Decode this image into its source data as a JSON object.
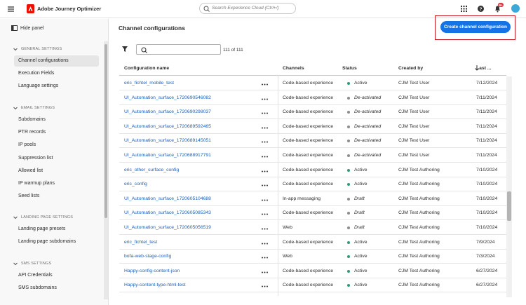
{
  "header": {
    "app_name": "Adobe Journey Optimizer",
    "search_placeholder": "Search Experience Cloud (Ctrl+/)",
    "notification_badge": "9+"
  },
  "sidebar": {
    "hide_panel": "Hide panel",
    "selected": "Channel configurations",
    "sections": [
      {
        "title": "GENERAL SETTINGS",
        "items": [
          "Channel configurations",
          "Execution Fields",
          "Language settings"
        ]
      },
      {
        "title": "EMAIL SETTINGS",
        "items": [
          "Subdomains",
          "PTR records",
          "IP pools",
          "Suppression list",
          "Allowed list",
          "IP warmup plans",
          "Seed lists"
        ]
      },
      {
        "title": "LANDING PAGE SETTINGS",
        "items": [
          "Landing page presets",
          "Landing page subdomains"
        ]
      },
      {
        "title": "SMS SETTINGS",
        "items": [
          "API Credentials",
          "SMS subdomains"
        ]
      }
    ]
  },
  "main": {
    "title": "Channel configurations",
    "create_button": "Create channel configuration",
    "count": "111 of 111",
    "table": {
      "columns": [
        "Configuration name",
        "Channels",
        "Status",
        "Created by",
        "Last ..."
      ],
      "rows": [
        {
          "name": "eric_fichtel_mobile_test",
          "channel": "Code-based experience",
          "status": "Active",
          "status_color": "#2d9d78",
          "created_by": "CJM Test User",
          "last": "7/12/2024"
        },
        {
          "name": "UI_Automation_surface_1720690546082",
          "channel": "Code-based experience",
          "status": "De-activated",
          "status_color": "#8e8e8e",
          "created_by": "CJM Test User",
          "last": "7/11/2024"
        },
        {
          "name": "UI_Automation_surface_1720690298037",
          "channel": "Code-based experience",
          "status": "De-activated",
          "status_color": "#8e8e8e",
          "created_by": "CJM Test User",
          "last": "7/11/2024"
        },
        {
          "name": "UI_Automation_surface_1720689592465",
          "channel": "Code-based experience",
          "status": "De-activated",
          "status_color": "#8e8e8e",
          "created_by": "CJM Test User",
          "last": "7/11/2024"
        },
        {
          "name": "UI_Automation_surface_1720689145051",
          "channel": "Code-based experience",
          "status": "De-activated",
          "status_color": "#8e8e8e",
          "created_by": "CJM Test User",
          "last": "7/11/2024"
        },
        {
          "name": "UI_Automation_surface_1720688917791",
          "channel": "Code-based experience",
          "status": "De-activated",
          "status_color": "#8e8e8e",
          "created_by": "CJM Test User",
          "last": "7/11/2024"
        },
        {
          "name": "eric_other_surface_config",
          "channel": "Code-based experience",
          "status": "Active",
          "status_color": "#2d9d78",
          "created_by": "CJM Test Authoring",
          "last": "7/10/2024"
        },
        {
          "name": "eric_config",
          "channel": "Code-based experience",
          "status": "Active",
          "status_color": "#2d9d78",
          "created_by": "CJM Test Authoring",
          "last": "7/10/2024"
        },
        {
          "name": "UI_Automation_surface_1720605104688",
          "channel": "In-app messaging",
          "status": "Draft",
          "status_color": "#8e8e8e",
          "created_by": "CJM Test Authoring",
          "last": "7/10/2024"
        },
        {
          "name": "UI_Automation_surface_1720605085343",
          "channel": "Code-based experience",
          "status": "Draft",
          "status_color": "#8e8e8e",
          "created_by": "CJM Test Authoring",
          "last": "7/10/2024"
        },
        {
          "name": "UI_Automation_surface_1720605056519",
          "channel": "Web",
          "status": "Draft",
          "status_color": "#8e8e8e",
          "created_by": "CJM Test Authoring",
          "last": "7/10/2024"
        },
        {
          "name": "eric_fichtel_test",
          "channel": "Code-based experience",
          "status": "Active",
          "status_color": "#2d9d78",
          "created_by": "CJM Test Authoring",
          "last": "7/9/2024"
        },
        {
          "name": "bofa-web-stage-config",
          "channel": "Web",
          "status": "Active",
          "status_color": "#2d9d78",
          "created_by": "CJM Test Authoring",
          "last": "7/3/2024"
        },
        {
          "name": "Happy-config-content-json",
          "channel": "Code-based experience",
          "status": "Active",
          "status_color": "#2d9d78",
          "created_by": "CJM Test Authoring",
          "last": "6/27/2024"
        },
        {
          "name": "Happy-content-type-html-test",
          "channel": "Code-based experience",
          "status": "Active",
          "status_color": "#2d9d78",
          "created_by": "CJM Test Authoring",
          "last": "6/27/2024"
        }
      ]
    }
  }
}
